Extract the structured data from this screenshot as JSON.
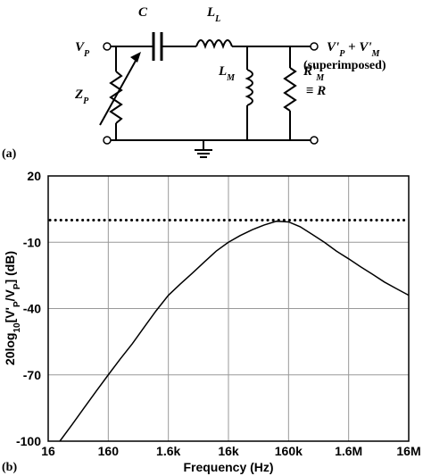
{
  "circuit": {
    "panel_label": "(a)",
    "labels": {
      "vp": [
        "V",
        "P"
      ],
      "c": [
        "C"
      ],
      "ll": [
        "L",
        "L"
      ],
      "out": [
        "V'",
        "P",
        " + V'",
        "M"
      ],
      "superimposed": "(superimposed)",
      "zp": [
        "Z",
        "P"
      ],
      "lm": [
        "L",
        "M"
      ],
      "rm": [
        "R'",
        "M"
      ],
      "eq": "≡ R"
    }
  },
  "panel_label_b": "(b)",
  "chart_data": {
    "type": "line",
    "x_label": "Frequency (Hz)",
    "y_label": [
      "20log",
      "10",
      "[V'",
      "P",
      "/V",
      "P",
      "] (dB)"
    ],
    "x": [
      25,
      40,
      63,
      100,
      160,
      250,
      400,
      630,
      1000,
      1600,
      2500,
      4000,
      6300,
      10000,
      16000,
      25000,
      40000,
      63000,
      100000,
      160000,
      250000,
      400000,
      630000,
      1000000,
      1600000,
      2500000,
      4000000,
      6300000,
      10000000,
      16000000
    ],
    "values": [
      -100,
      -92.5,
      -85,
      -77.5,
      -70,
      -63,
      -56,
      -48.5,
      -41,
      -34,
      -29,
      -24,
      -19,
      -14,
      -10,
      -7,
      -4.3,
      -2.2,
      -0.5,
      -0.8,
      -3,
      -6.5,
      -10,
      -14,
      -17.5,
      -21,
      -24.5,
      -28,
      -31,
      -34
    ],
    "color": "#000000",
    "reference_line": 0,
    "log_x": true,
    "grid": true,
    "xlim": [
      16,
      16000000
    ],
    "xticks": [
      16,
      160,
      {
        "value": 1600,
        "label": "1.6k"
      },
      {
        "value": 16000,
        "label": "16k"
      },
      {
        "value": 160000,
        "label": "160k"
      },
      {
        "value": 1600000,
        "label": "1.6M"
      },
      {
        "value": 16000000,
        "label": "16M"
      }
    ],
    "ylim": [
      -100,
      20
    ],
    "yticks": [
      20,
      -10,
      -40,
      -70,
      -100
    ]
  }
}
